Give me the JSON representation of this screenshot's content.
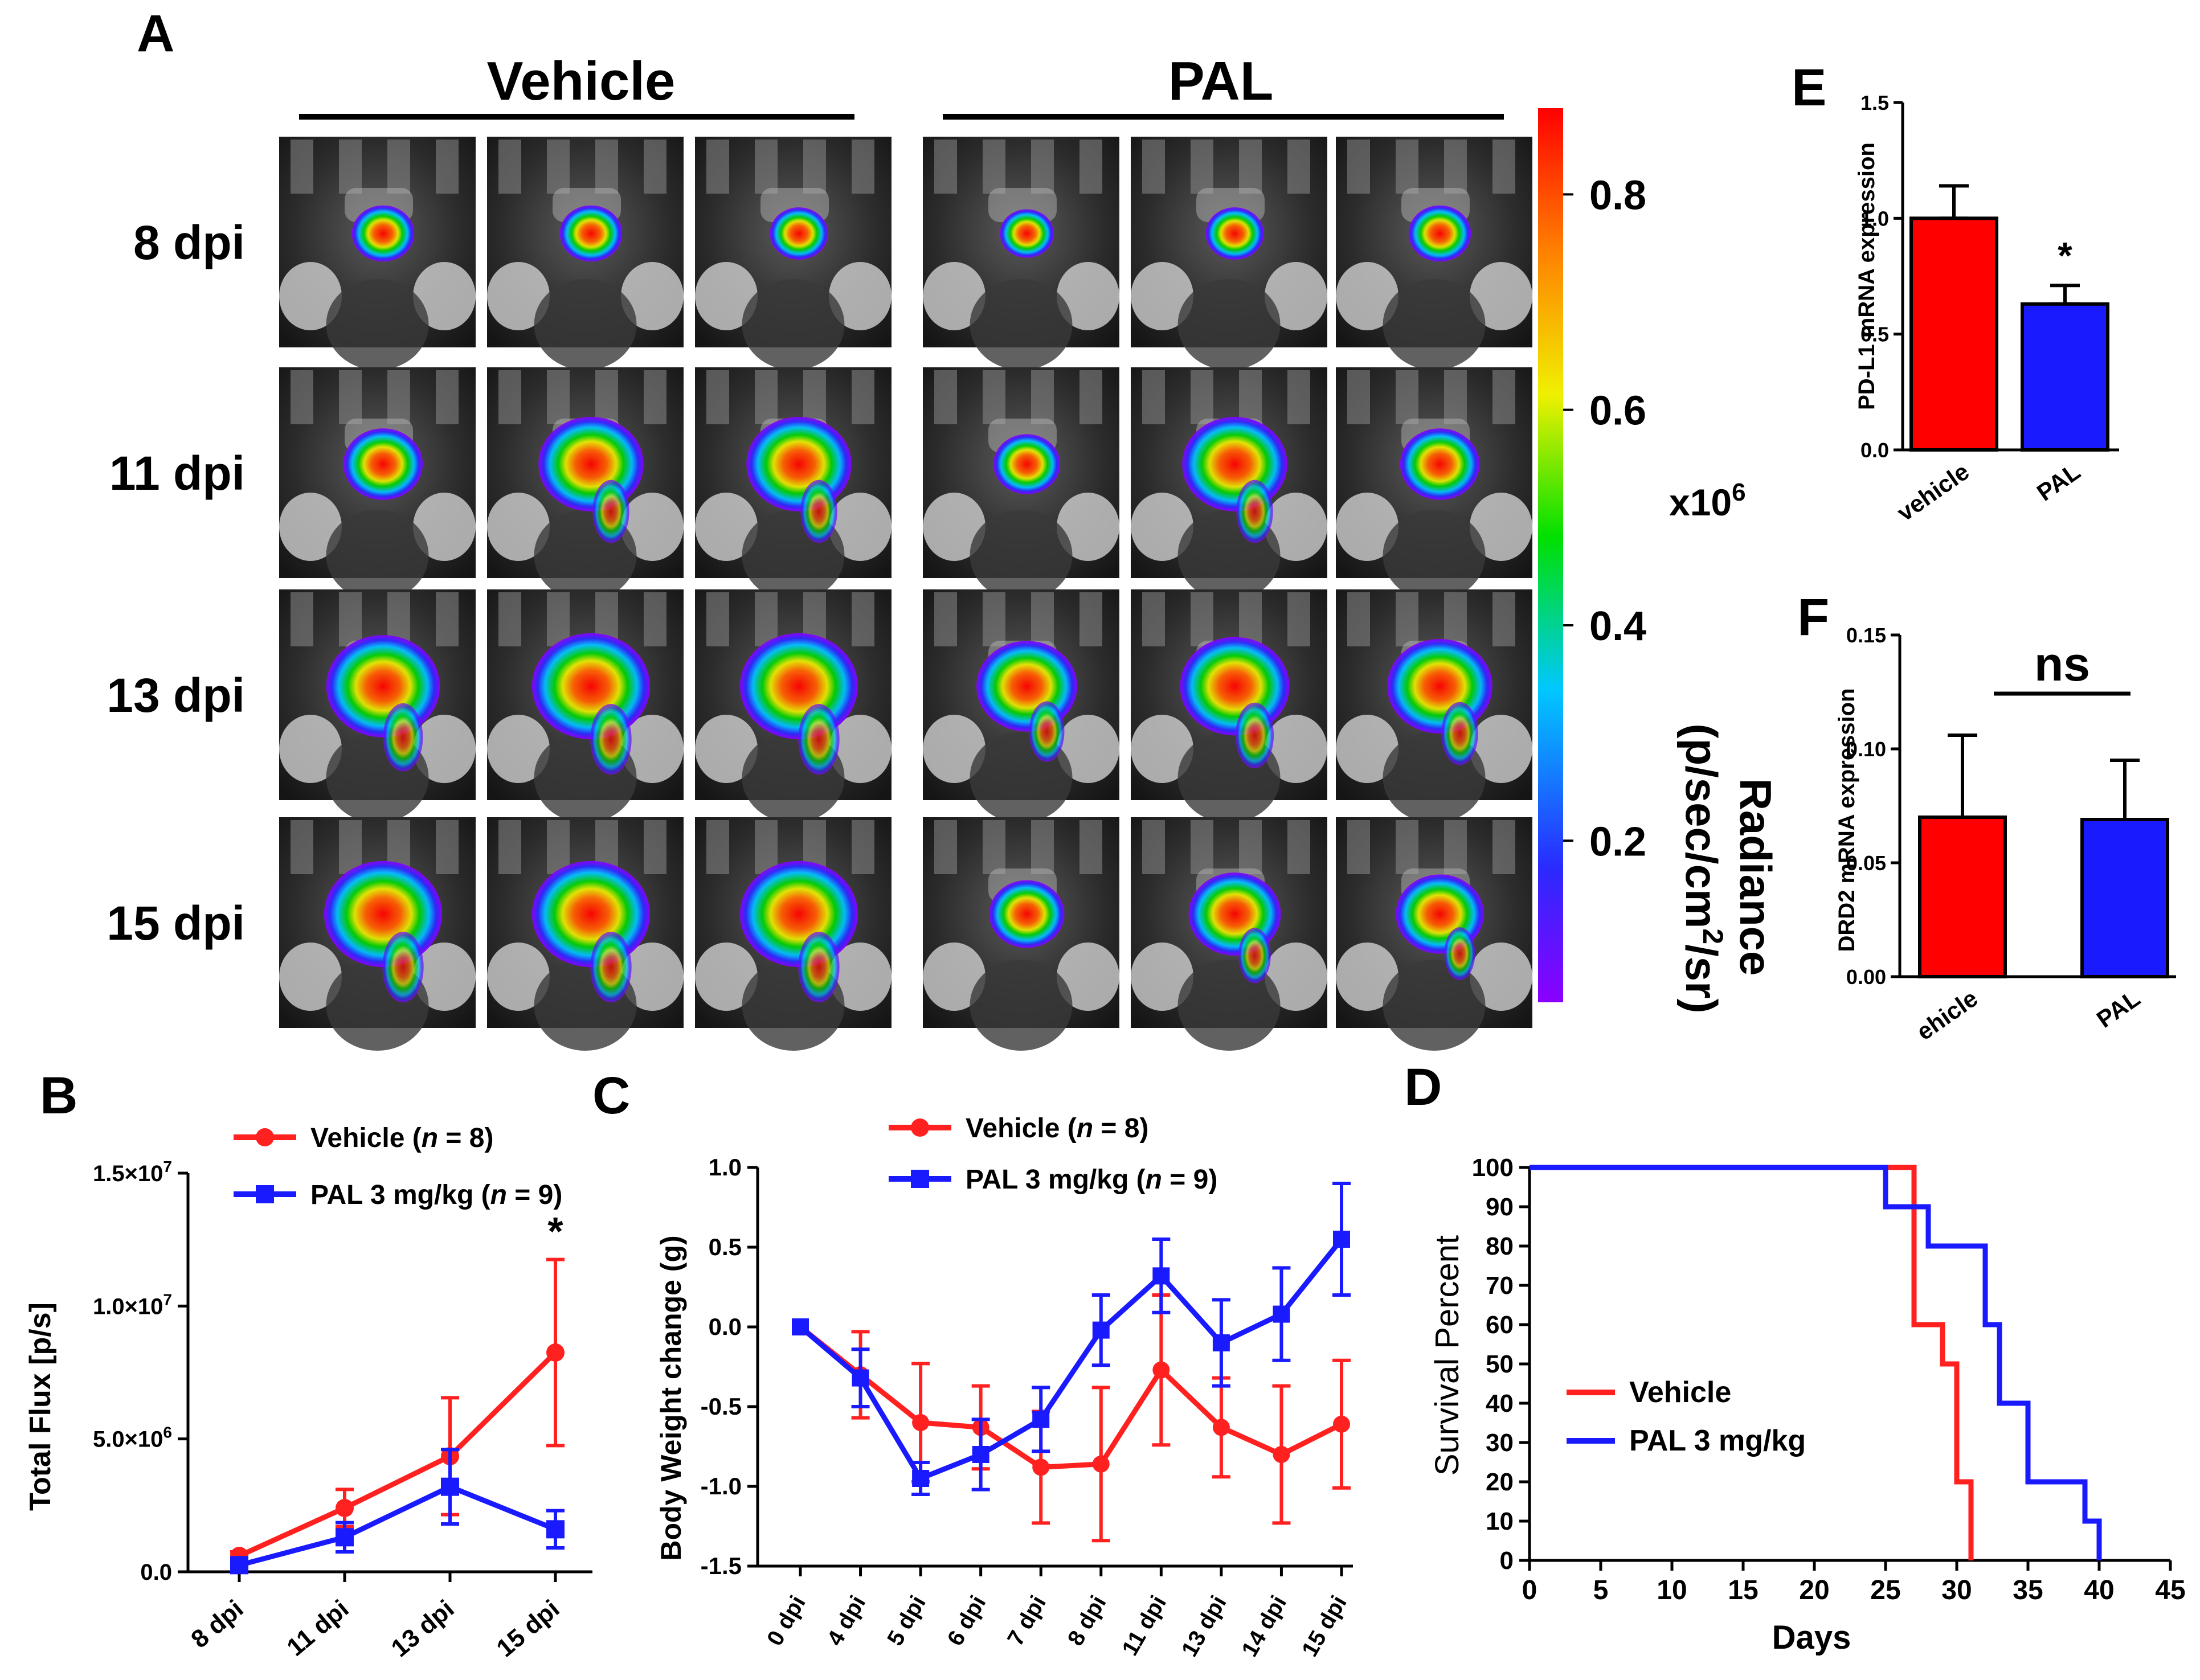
{
  "panel_labels": {
    "A": "A",
    "B": "B",
    "C": "C",
    "D": "D",
    "E": "E",
    "F": "F"
  },
  "panelA": {
    "groups": [
      "Vehicle",
      "PAL"
    ],
    "rows": [
      "8 dpi",
      "11 dpi",
      "13 dpi",
      "15 dpi"
    ],
    "colorbar": {
      "ticks": [
        "0.8",
        "0.6",
        "0.4",
        "0.2"
      ],
      "tick_values": [
        0.8,
        0.6,
        0.4,
        0.2
      ],
      "range": [
        0.05,
        0.88
      ],
      "multiplier": "x10",
      "multiplier_exp": "6",
      "label_line1": "Radiance",
      "label_line2a": "(p/sec/cm",
      "label_line2_exp": "2",
      "label_line2b": "/sr)"
    },
    "signal_intensity": [
      [
        [
          0.25,
          0.25,
          0.2
        ],
        [
          0.15,
          0.2,
          0.25
        ]
      ],
      [
        [
          0.45,
          0.75,
          0.75
        ],
        [
          0.3,
          0.75,
          0.45
        ]
      ],
      [
        [
          0.85,
          0.9,
          0.9
        ],
        [
          0.7,
          0.8,
          0.75
        ]
      ],
      [
        [
          0.9,
          0.9,
          0.9
        ],
        [
          0.4,
          0.6,
          0.55
        ]
      ]
    ]
  },
  "chart_data": [
    {
      "id": "B",
      "type": "line",
      "title": "",
      "xlabel": "",
      "ylabel": "Total Flux [p/s]",
      "categories": [
        "8 dpi",
        "11 dpi",
        "13 dpi",
        "15 dpi"
      ],
      "ylim": [
        0,
        15000000
      ],
      "ytick_labels": [
        {
          "value": 0,
          "m": "0.0",
          "e": ""
        },
        {
          "value": 5000000,
          "m": "5.0×10",
          "e": "6"
        },
        {
          "value": 10000000,
          "m": "1.0×10",
          "e": "7"
        },
        {
          "value": 15000000,
          "m": "1.5×10",
          "e": "7"
        }
      ],
      "legend": [
        {
          "name": "Vehicle",
          "n_prefix": "(",
          "n_var": "n",
          "n_suffix": " = 8)"
        },
        {
          "name": "PAL 3 mg/kg",
          "n_prefix": "(",
          "n_var": "n",
          "n_suffix": " = 9)"
        }
      ],
      "series": [
        {
          "name": "Vehicle",
          "color": "#ff2020",
          "marker": "circle",
          "values": [
            600000,
            2400000,
            4350000,
            8250000
          ],
          "errors": [
            150000,
            700000,
            2200000,
            3500000
          ]
        },
        {
          "name": "PAL 3 mg/kg",
          "color": "#1a1aff",
          "marker": "square",
          "values": [
            250000,
            1300000,
            3200000,
            1600000
          ],
          "errors": [
            100000,
            550000,
            1400000,
            700000
          ]
        }
      ],
      "annotations": [
        {
          "text": "*",
          "category": "15 dpi",
          "value": 12300000
        }
      ]
    },
    {
      "id": "C",
      "type": "line",
      "title": "",
      "xlabel": "",
      "ylabel": "Body Weight change (g)",
      "categories": [
        "0 dpi",
        "4 dpi",
        "5 dpi",
        "6 dpi",
        "7 dpi",
        "8 dpi",
        "11 dpi",
        "13 dpi",
        "14 dpi",
        "15 dpi"
      ],
      "ylim": [
        -1.5,
        1.0
      ],
      "yticks": [
        1.0,
        0.5,
        0.0,
        -0.5,
        -1.0,
        -1.5
      ],
      "ytick_labels": [
        "1.0",
        "0.5",
        "0.0",
        "-0.5",
        "-1.0",
        "-1.5"
      ],
      "legend": [
        {
          "name": "Vehicle",
          "n_prefix": "(",
          "n_var": "n",
          "n_suffix": " = 8)"
        },
        {
          "name": "PAL 3 mg/kg",
          "n_prefix": "(",
          "n_var": "n",
          "n_suffix": " = 9)"
        }
      ],
      "series": [
        {
          "name": "Vehicle",
          "color": "#ff2020",
          "marker": "circle",
          "values": [
            0.0,
            -0.3,
            -0.6,
            -0.63,
            -0.88,
            -0.86,
            -0.27,
            -0.63,
            -0.8,
            -0.61
          ],
          "errors": [
            0.0,
            0.27,
            0.37,
            0.26,
            0.35,
            0.48,
            0.47,
            0.31,
            0.43,
            0.4
          ]
        },
        {
          "name": "PAL 3 mg/kg",
          "color": "#1a1aff",
          "marker": "square",
          "values": [
            0.0,
            -0.32,
            -0.95,
            -0.8,
            -0.58,
            -0.02,
            0.32,
            -0.1,
            0.08,
            0.55
          ],
          "errors": [
            0.0,
            0.18,
            0.1,
            0.22,
            0.2,
            0.22,
            0.23,
            0.27,
            0.29,
            0.35
          ]
        }
      ]
    },
    {
      "id": "D",
      "type": "line",
      "subtype": "step",
      "title": "",
      "xlabel": "Days",
      "ylabel": "Survival Percent",
      "xlim": [
        0,
        45
      ],
      "ylim": [
        0,
        100
      ],
      "xticks": [
        0,
        5,
        10,
        15,
        20,
        25,
        30,
        35,
        40,
        45
      ],
      "yticks": [
        0,
        10,
        20,
        30,
        40,
        50,
        60,
        70,
        80,
        90,
        100
      ],
      "legend": [
        "Vehicle",
        "PAL 3 mg/kg"
      ],
      "series": [
        {
          "name": "Vehicle",
          "color": "#ff2020",
          "points": [
            [
              0,
              100
            ],
            [
              27,
              100
            ],
            [
              27,
              60
            ],
            [
              29,
              60
            ],
            [
              29,
              50
            ],
            [
              30,
              50
            ],
            [
              30,
              20
            ],
            [
              31,
              20
            ],
            [
              31,
              0
            ]
          ]
        },
        {
          "name": "PAL 3 mg/kg",
          "color": "#1a1aff",
          "points": [
            [
              0,
              100
            ],
            [
              25,
              100
            ],
            [
              25,
              90
            ],
            [
              28,
              90
            ],
            [
              28,
              80
            ],
            [
              32,
              80
            ],
            [
              32,
              60
            ],
            [
              33,
              60
            ],
            [
              33,
              40
            ],
            [
              35,
              40
            ],
            [
              35,
              20
            ],
            [
              39,
              20
            ],
            [
              39,
              10
            ],
            [
              40,
              10
            ],
            [
              40,
              0
            ]
          ]
        }
      ]
    },
    {
      "id": "E",
      "type": "bar",
      "title": "",
      "xlabel": "",
      "ylabel": "PD-L1 mRNA expression",
      "categories": [
        "vehicle",
        "PAL"
      ],
      "values": [
        1.0,
        0.63
      ],
      "errors": [
        0.14,
        0.08
      ],
      "colors": [
        "#ff0000",
        "#1a1aff"
      ],
      "ylim": [
        0,
        1.5
      ],
      "yticks": [
        0.0,
        0.5,
        1.0,
        1.5
      ],
      "ytick_labels": [
        "0.0",
        "0.5",
        "1.0",
        "1.5"
      ],
      "annotations": [
        {
          "text": "*",
          "category": "PAL"
        }
      ]
    },
    {
      "id": "F",
      "type": "bar",
      "title": "",
      "xlabel": "",
      "ylabel": "DRD2 mRNA expression",
      "categories": [
        "ehicle",
        "PAL"
      ],
      "values": [
        0.07,
        0.069
      ],
      "errors": [
        0.036,
        0.026
      ],
      "colors": [
        "#ff0000",
        "#1a1aff"
      ],
      "ylim": [
        0,
        0.15
      ],
      "yticks": [
        0.0,
        0.05,
        0.1,
        0.15
      ],
      "ytick_labels": [
        "0.00",
        "0.05",
        "0.10",
        "0.15"
      ],
      "annotations": [
        {
          "text": "ns",
          "type": "bracket"
        }
      ]
    }
  ]
}
